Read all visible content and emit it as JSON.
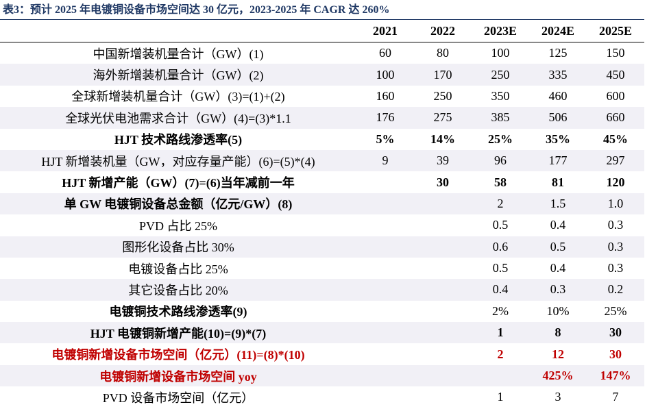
{
  "title": "表3：预计 2025 年电镀铜设备市场空间达 30 亿元，2023-2025 年 CAGR 达 260%",
  "table": {
    "header": [
      "2021",
      "2022",
      "2023E",
      "2024E",
      "2025E"
    ],
    "rows": [
      {
        "label": "中国新增装机量合计（GW）(1)",
        "values": [
          "60",
          "80",
          "100",
          "125",
          "150"
        ]
      },
      {
        "label": "海外新增装机量合计（GW）(2)",
        "values": [
          "100",
          "170",
          "250",
          "335",
          "450"
        ]
      },
      {
        "label": "全球新增装机量合计（GW）(3)=(1)+(2)",
        "values": [
          "160",
          "250",
          "350",
          "460",
          "600"
        ]
      },
      {
        "label": "全球光伏电池需求合计（GW）(4)=(3)*1.1",
        "values": [
          "176",
          "275",
          "385",
          "506",
          "660"
        ]
      },
      {
        "label": "HJT 技术路线渗透率(5)",
        "values": [
          "5%",
          "14%",
          "25%",
          "35%",
          "45%"
        ],
        "bold": true
      },
      {
        "label": "HJT 新增装机量（GW，对应存量产能）(6)=(5)*(4)",
        "values": [
          "9",
          "39",
          "96",
          "177",
          "297"
        ]
      },
      {
        "label": "HJT 新增产能（GW）(7)=(6)当年减前一年",
        "values": [
          null,
          "30",
          "58",
          "81",
          "120"
        ],
        "bold": true
      },
      {
        "label": "单 GW 电镀铜设备总金额（亿元/GW）(8)",
        "values": [
          null,
          null,
          "2",
          "1.5",
          "1.0"
        ],
        "bold_label": true
      },
      {
        "label": "PVD 占比 25%",
        "values": [
          null,
          null,
          "0.5",
          "0.4",
          "0.3"
        ]
      },
      {
        "label": "图形化设备占比 30%",
        "values": [
          null,
          null,
          "0.6",
          "0.5",
          "0.3"
        ]
      },
      {
        "label": "电镀设备占比 25%",
        "values": [
          null,
          null,
          "0.5",
          "0.4",
          "0.3"
        ]
      },
      {
        "label": "其它设备占比 20%",
        "values": [
          null,
          null,
          "0.4",
          "0.3",
          "0.2"
        ]
      },
      {
        "label": "电镀铜技术路线渗透率(9)",
        "values": [
          null,
          null,
          "2%",
          "10%",
          "25%"
        ],
        "bold_label": true
      },
      {
        "label": "HJT 电镀铜新增产能(10)=(9)*(7)",
        "values": [
          null,
          null,
          "1",
          "8",
          "30"
        ],
        "bold": true
      },
      {
        "label": "电镀铜新增设备市场空间（亿元）(11)=(8)*(10)",
        "values": [
          null,
          null,
          "2",
          "12",
          "30"
        ],
        "bold": true,
        "color": "#c00000"
      },
      {
        "label": "电镀铜新增设备市场空间 yoy",
        "values": [
          null,
          null,
          null,
          "425%",
          "147%"
        ],
        "bold": true,
        "color": "#c00000"
      },
      {
        "label": "PVD 设备市场空间（亿元）",
        "values": [
          null,
          null,
          "1",
          "3",
          "7"
        ]
      }
    ]
  }
}
